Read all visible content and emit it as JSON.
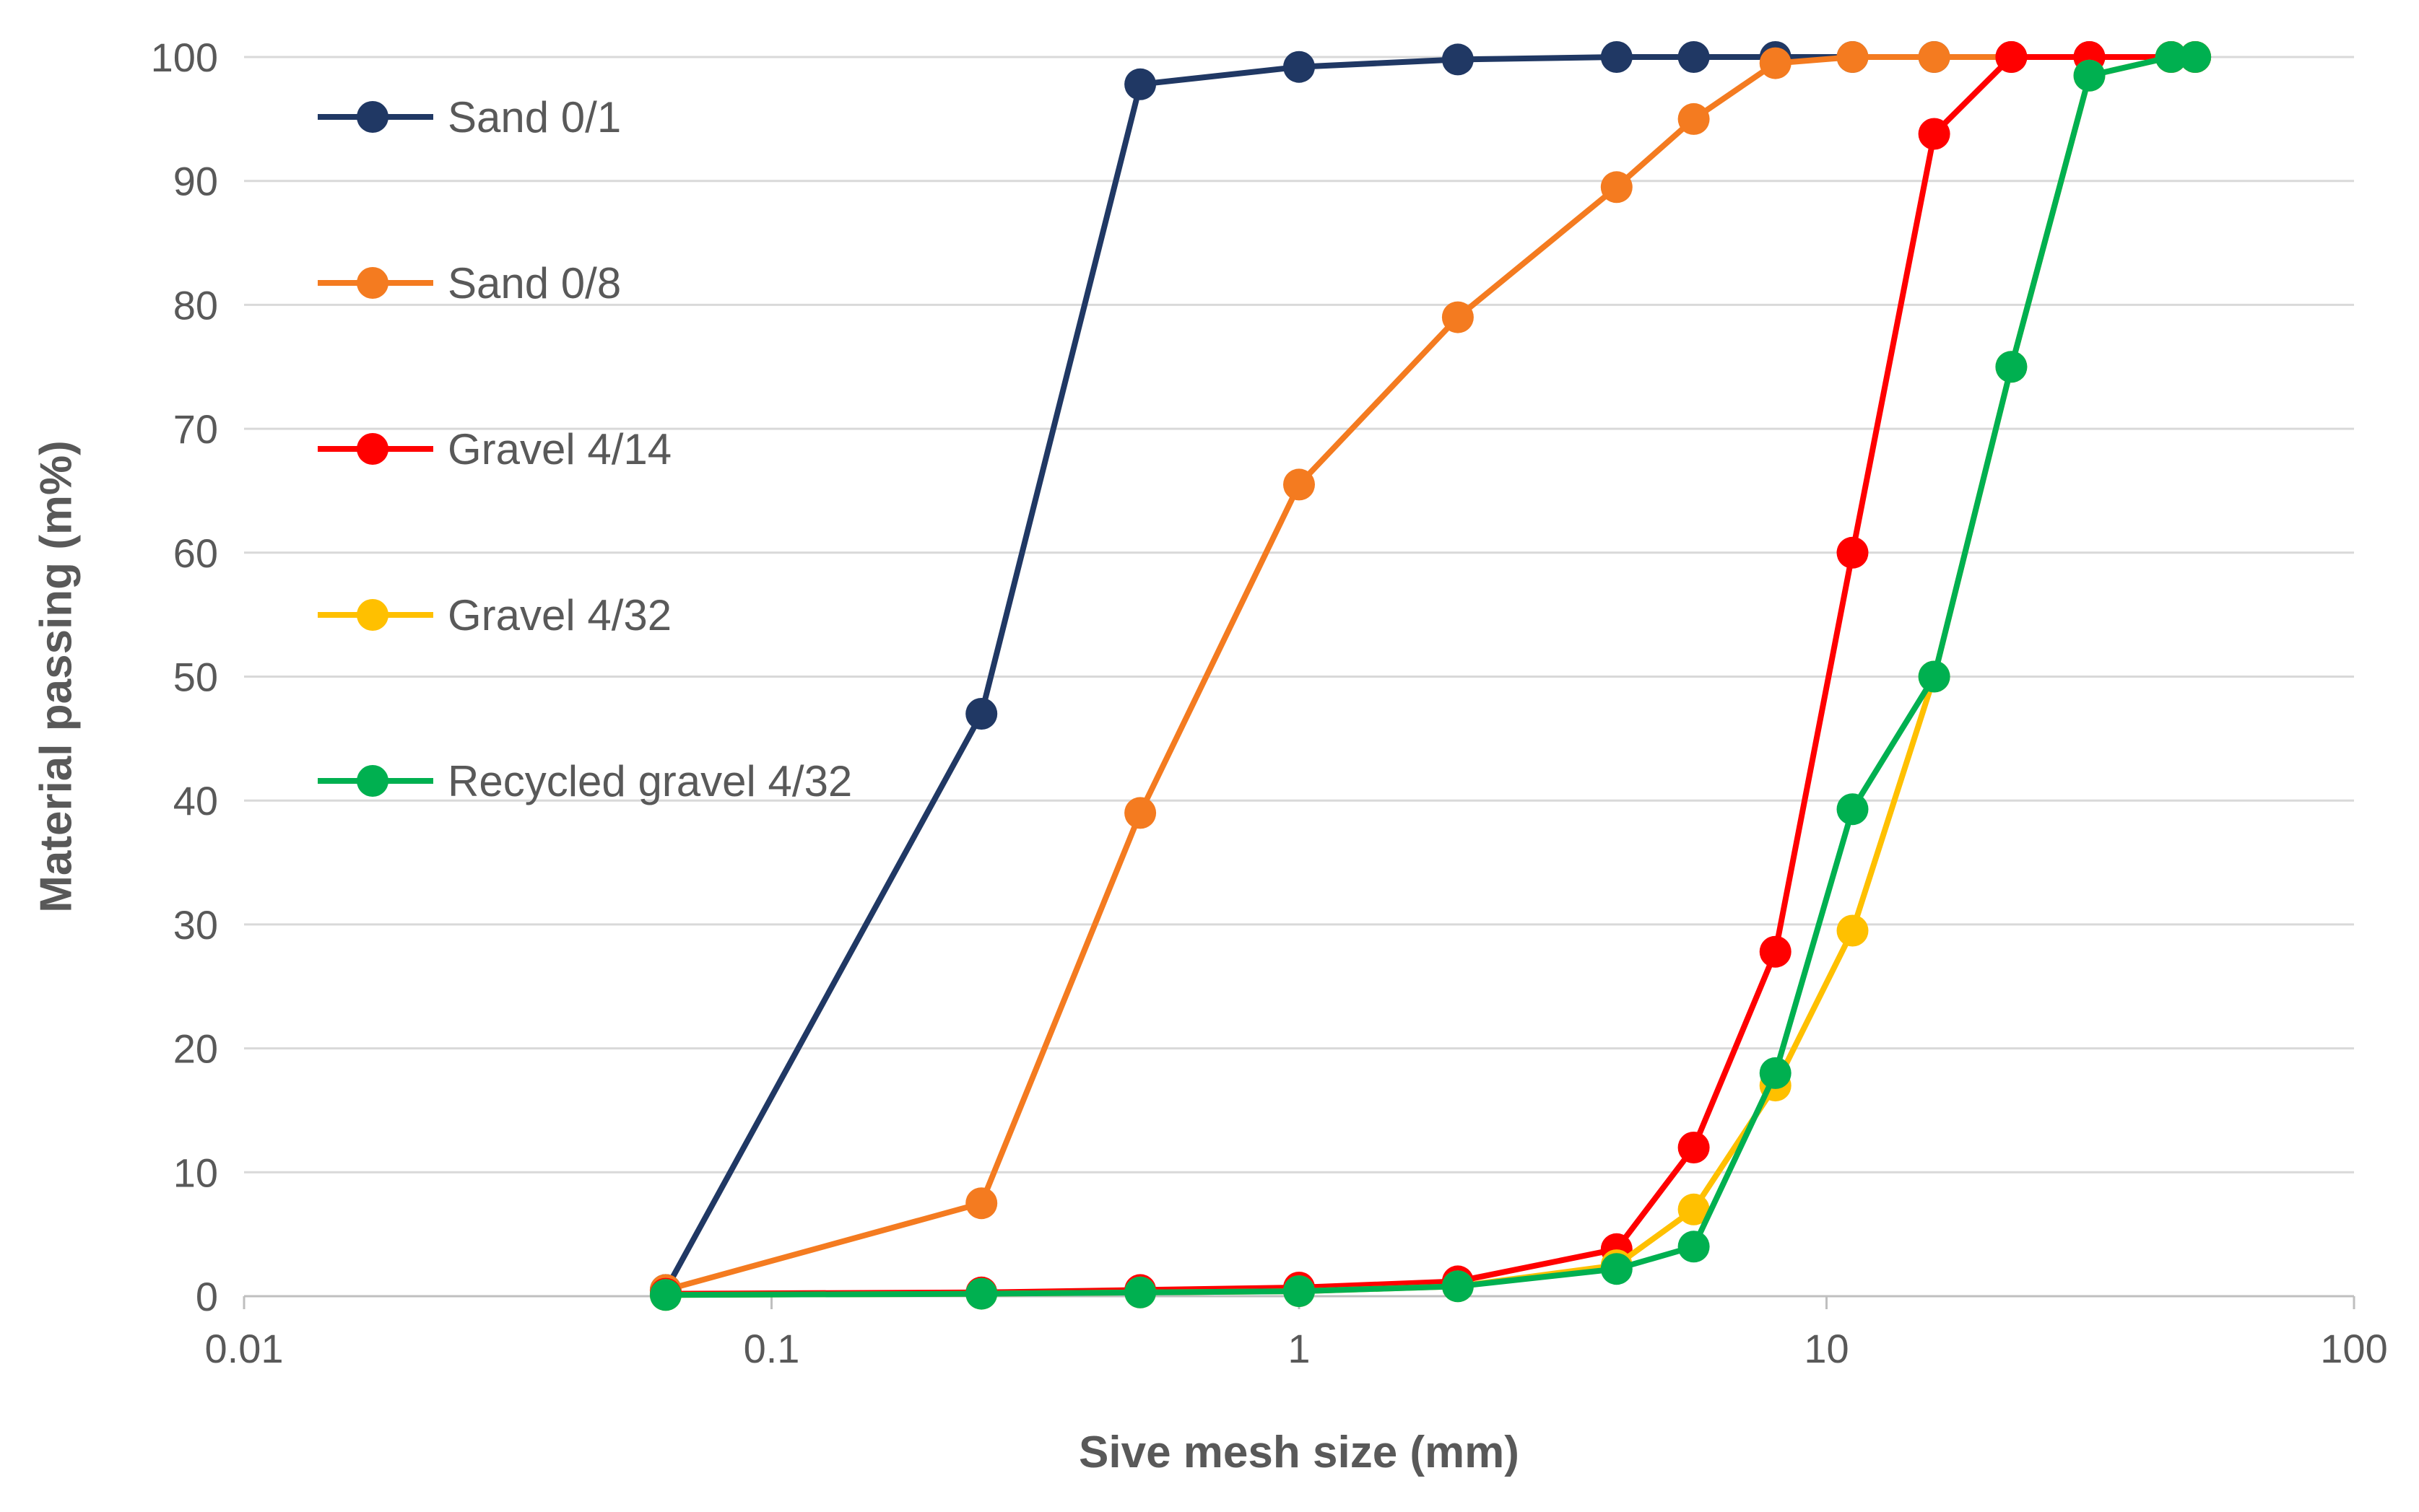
{
  "chart_data": {
    "type": "line",
    "title": "",
    "xlabel": "Sive mesh size (mm)",
    "ylabel": "Material passing (m%)",
    "x_scale": "log",
    "xlim": [
      0.01,
      100
    ],
    "ylim": [
      0,
      100
    ],
    "x_ticks": [
      0.01,
      0.1,
      1,
      10,
      100
    ],
    "x_tick_labels": [
      "0.01",
      "0.1",
      "1",
      "10",
      "100"
    ],
    "y_ticks": [
      0,
      10,
      20,
      30,
      40,
      50,
      60,
      70,
      80,
      90,
      100
    ],
    "y_tick_labels": [
      "0",
      "10",
      "20",
      "30",
      "40",
      "50",
      "60",
      "70",
      "80",
      "90",
      "100"
    ],
    "grid": "horizontal",
    "legend_position": "top-left",
    "series": [
      {
        "name": "Sand 0/1",
        "color": "#203864",
        "x": [
          0.063,
          0.25,
          0.5,
          1,
          2,
          4,
          5.6,
          8,
          11.2,
          16,
          22.4,
          31.5,
          45,
          50
        ],
        "y": [
          0.5,
          47,
          97.8,
          99.2,
          99.8,
          100,
          100,
          100,
          100,
          100,
          100,
          100,
          100,
          100
        ]
      },
      {
        "name": "Sand 0/8",
        "color": "#F47B20",
        "x": [
          0.063,
          0.25,
          0.5,
          1,
          2,
          4,
          5.6,
          8,
          11.2,
          16,
          22.4,
          31.5,
          45,
          50
        ],
        "y": [
          0.5,
          7.5,
          39,
          65.5,
          79,
          89.5,
          95,
          99.5,
          100,
          100,
          100,
          100,
          100,
          100
        ]
      },
      {
        "name": "Gravel 4/14",
        "color": "#FF0000",
        "x": [
          0.063,
          0.25,
          0.5,
          1,
          2,
          4,
          5.6,
          8,
          11.2,
          16,
          22.4,
          31.5,
          45,
          50
        ],
        "y": [
          0.2,
          0.3,
          0.5,
          0.7,
          1.2,
          3.8,
          12,
          27.8,
          60,
          93.8,
          100,
          100,
          100,
          100
        ]
      },
      {
        "name": "Gravel 4/32",
        "color": "#FFC000",
        "x": [
          0.063,
          0.25,
          0.5,
          1,
          2,
          4,
          5.6,
          8,
          11.2,
          16,
          22.4,
          31.5,
          45,
          50
        ],
        "y": [
          0.1,
          0.2,
          0.3,
          0.4,
          0.8,
          2.5,
          7,
          17,
          29.5,
          50,
          75,
          98.5,
          100,
          100
        ]
      },
      {
        "name": "Recycled gravel 4/32",
        "color": "#00B050",
        "x": [
          0.063,
          0.25,
          0.5,
          1,
          2,
          4,
          5.6,
          8,
          11.2,
          16,
          22.4,
          31.5,
          45,
          50
        ],
        "y": [
          0.1,
          0.2,
          0.3,
          0.4,
          0.8,
          2.2,
          4,
          18,
          39.3,
          50,
          75,
          98.5,
          100,
          100
        ]
      }
    ]
  }
}
